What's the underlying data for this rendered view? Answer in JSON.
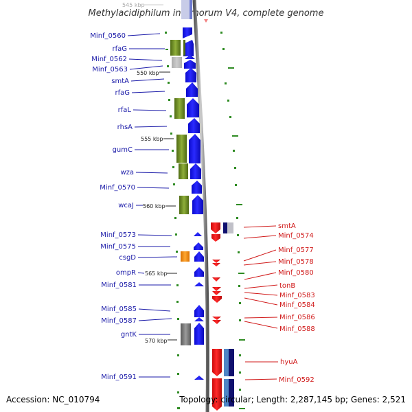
{
  "title": "Methylacidiphilum infernorum V4, complete genome",
  "footer": {
    "accession": "Accession: NC_010794",
    "topology": "Topology: circular; Length: 2,287,145 bp; Genes: 2,521"
  },
  "kbp_labels": [
    "545 kbp",
    "550 kbp",
    "555 kbp",
    "560 kbp",
    "565 kbp",
    "570 kbp"
  ],
  "colors": {
    "forward_gene": "#1a1ae6",
    "reverse_gene": "#e61a1a",
    "rna_green": "#6b8e23",
    "orange_feature": "#ff8c00",
    "grey_feature": "#808080",
    "left_label": "#1a1aa8",
    "right_label": "#d01818",
    "tick_green": "#2e8b22"
  },
  "left_genes": [
    "Minf_0560",
    "rfaG",
    "Minf_0562",
    "Minf_0563",
    "smtA",
    "rfaG",
    "rfaL",
    "rhsA",
    "gumC",
    "wza",
    "Minf_0570",
    "wcaJ",
    "Minf_0573",
    "Minf_0575",
    "csgD",
    "ompR",
    "Minf_0581",
    "Minf_0585",
    "Minf_0587",
    "gntK",
    "Minf_0591"
  ],
  "right_genes": [
    "smtA",
    "Minf_0574",
    "Minf_0577",
    "Minf_0578",
    "Minf_0580",
    "tonB",
    "Minf_0583",
    "Minf_0584",
    "Minf_0586",
    "Minf_0588",
    "hyuA",
    "Minf_0592"
  ]
}
